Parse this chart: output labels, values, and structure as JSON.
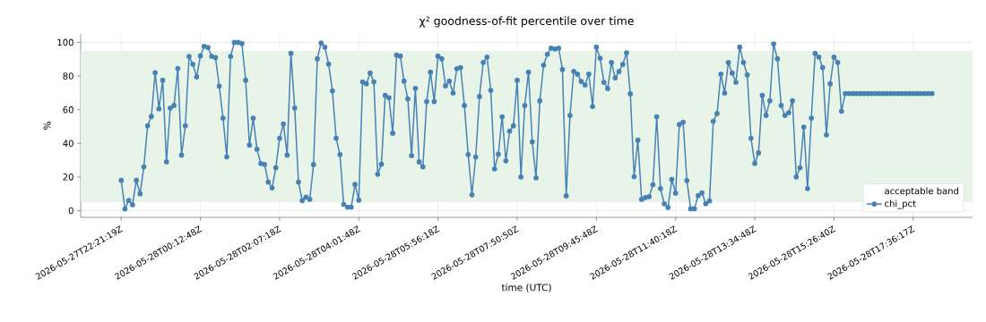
{
  "chart_data": {
    "type": "line",
    "title": "χ² goodness-of-fit percentile over time",
    "xlabel": "time (UTC)",
    "ylabel": "%",
    "categories": [
      "2026-05-27T22:21:19Z",
      null,
      null,
      null,
      null,
      null,
      null,
      null,
      null,
      null,
      null,
      null,
      null,
      null,
      null,
      null,
      null,
      null,
      null,
      null,
      null,
      "2026-05-28T00:12:48Z",
      null,
      null,
      null,
      null,
      null,
      null,
      null,
      null,
      null,
      null,
      null,
      null,
      null,
      null,
      null,
      null,
      null,
      null,
      null,
      null,
      "2026-05-28T02:07:18Z",
      null,
      null,
      null,
      null,
      null,
      null,
      null,
      null,
      null,
      null,
      null,
      null,
      null,
      null,
      null,
      null,
      null,
      null,
      null,
      null,
      "2026-05-28T04:01:48Z",
      null,
      null,
      null,
      null,
      null,
      null,
      null,
      null,
      null,
      null,
      null,
      null,
      null,
      null,
      null,
      null,
      null,
      null,
      null,
      null,
      "2026-05-28T05:56:18Z",
      null,
      null,
      null,
      null,
      null,
      null,
      null,
      null,
      null,
      null,
      null,
      null,
      null,
      null,
      null,
      null,
      null,
      null,
      null,
      null,
      "2026-05-28T07:50:50Z",
      null,
      null,
      null,
      null,
      null,
      null,
      null,
      null,
      null,
      null,
      null,
      null,
      null,
      null,
      null,
      null,
      null,
      null,
      null,
      null,
      "2026-05-28T09:45:48Z",
      null,
      null,
      null,
      null,
      null,
      null,
      null,
      null,
      null,
      null,
      null,
      null,
      null,
      null,
      null,
      null,
      null,
      null,
      null,
      null,
      "2026-05-28T11:40:18Z",
      null,
      null,
      null,
      null,
      null,
      null,
      null,
      null,
      null,
      null,
      null,
      null,
      null,
      null,
      null,
      null,
      null,
      null,
      null,
      null,
      "2026-05-28T13:34:48Z",
      null,
      null,
      null,
      null,
      null,
      null,
      null,
      null,
      null,
      null,
      null,
      null,
      null,
      null,
      null,
      null,
      null,
      null,
      null,
      null,
      "2026-05-28T15:26:40Z",
      null,
      null,
      null,
      null,
      null,
      null,
      null,
      null,
      null,
      null,
      null,
      null,
      null,
      null,
      null,
      null,
      null,
      null,
      null,
      null,
      "2026-05-28T17:36:17Z",
      null,
      null,
      null,
      null,
      null
    ],
    "ylim": [
      -4,
      105
    ],
    "yticks": [
      0,
      20,
      40,
      60,
      80,
      100
    ],
    "grid": true,
    "legend": "bottom right",
    "marker": "circle",
    "line_style": "solid",
    "bands": [
      {
        "axis": "y",
        "from": 5,
        "to": 95,
        "label": "acceptable band",
        "color": "#e9f4e9"
      }
    ],
    "series": [
      {
        "name": "chi_pct",
        "color": "#4682b4",
        "values": [
          18,
          1,
          6,
          3.5,
          18,
          10,
          26,
          50.5,
          56,
          82,
          60.5,
          77.5,
          29,
          61,
          62.5,
          84.5,
          33,
          50.5,
          91.7,
          87,
          79.5,
          92,
          97.7,
          97,
          91.7,
          91,
          74,
          55,
          32,
          91.7,
          100,
          100,
          99.3,
          77.5,
          39,
          55,
          36.5,
          28,
          27.5,
          17,
          13.5,
          25.5,
          43,
          51.5,
          33,
          93.5,
          61,
          17,
          6,
          8,
          6.7,
          27.4,
          90.3,
          99.6,
          97.2,
          87.1,
          71.2,
          43,
          33.3,
          3.7,
          2.1,
          2.1,
          15.6,
          6.2,
          76.5,
          75.4,
          81.8,
          76.5,
          21.6,
          27.6,
          68.5,
          67.1,
          46,
          92.4,
          91.9,
          77,
          66.4,
          32.7,
          72.7,
          29,
          26,
          64.8,
          82.3,
          64.8,
          91.9,
          90.3,
          74.2,
          77,
          69.9,
          84.4,
          85,
          62.5,
          33.3,
          9.4,
          31.9,
          67.8,
          88.1,
          91.3,
          71.5,
          24.8,
          33.5,
          55.8,
          29.6,
          47.3,
          50.4,
          77.5,
          20,
          62.5,
          82.3,
          40.9,
          19.5,
          65.3,
          86.5,
          92.9,
          96.6,
          96.1,
          96.6,
          83.9,
          8.8,
          56.6,
          82.8,
          81.1,
          76.8,
          74.7,
          81.2,
          61.9,
          97.2,
          90.6,
          76.3,
          72.6,
          88.1,
          78.9,
          82.7,
          86.9,
          93.8,
          69.4,
          20.2,
          41.9,
          6.7,
          7.8,
          8.3,
          15.4,
          55.8,
          13.1,
          4.1,
          1.9,
          18.6,
          10.4,
          51.2,
          52.6,
          17.9,
          1.1,
          1.1,
          9,
          10.6,
          4.1,
          5.8,
          53.1,
          57.7,
          81.2,
          69.9,
          88.1,
          81.8,
          76.3,
          97.2,
          88.1,
          80.7,
          43,
          28.1,
          34.3,
          68.5,
          56.6,
          65.3,
          99.1,
          90.3,
          62.5,
          56.6,
          58.2,
          65.3,
          20,
          25.5,
          49.7,
          13.1,
          55,
          93.5,
          91.3,
          85,
          45,
          75.4,
          91.3,
          88.1,
          59.1,
          69.6,
          69.6,
          69.6,
          69.6,
          69.6,
          69.6,
          69.6,
          69.6,
          69.6,
          69.6,
          69.6,
          69.6,
          69.6,
          69.6,
          69.6,
          69.6,
          69.6,
          69.6,
          69.6,
          69.6,
          69.6,
          69.6,
          69.6,
          69.6
        ]
      }
    ]
  }
}
